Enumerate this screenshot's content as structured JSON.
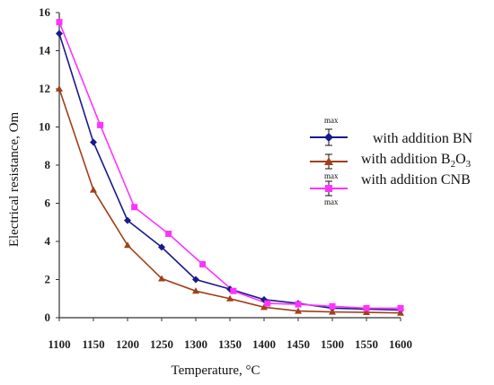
{
  "chart_data": {
    "type": "line",
    "title": "",
    "xlabel": "Temperature, °C",
    "ylabel": "Electrical resistance, Om",
    "x_ticks": [
      1100,
      1150,
      1200,
      1250,
      1300,
      1350,
      1400,
      1450,
      1500,
      1550,
      1600
    ],
    "y_ticks": [
      0,
      2,
      4,
      6,
      8,
      10,
      12,
      14,
      16
    ],
    "xlim": [
      1100,
      1600
    ],
    "ylim": [
      0,
      16
    ],
    "legend_position": "right",
    "error_bar_label": "max",
    "series": [
      {
        "name": "with addition BN",
        "color": "#1a1a8c",
        "marker": "diamond",
        "points": [
          [
            1100,
            14.9
          ],
          [
            1150,
            9.2
          ],
          [
            1200,
            5.1
          ],
          [
            1250,
            3.7
          ],
          [
            1300,
            2.0
          ],
          [
            1350,
            1.5
          ],
          [
            1400,
            0.95
          ],
          [
            1450,
            0.75
          ],
          [
            1500,
            0.5
          ],
          [
            1550,
            0.45
          ],
          [
            1600,
            0.4
          ]
        ]
      },
      {
        "name": "with addition B2O3",
        "name_base": "with addition B",
        "name_sub1": "2",
        "name_mid": "O",
        "name_sub2": "3",
        "color": "#a0401a",
        "marker": "triangle",
        "points": [
          [
            1100,
            12.0
          ],
          [
            1150,
            6.7
          ],
          [
            1200,
            3.8
          ],
          [
            1250,
            2.05
          ],
          [
            1300,
            1.4
          ],
          [
            1350,
            1.0
          ],
          [
            1400,
            0.55
          ],
          [
            1450,
            0.35
          ],
          [
            1500,
            0.3
          ],
          [
            1550,
            0.28
          ],
          [
            1600,
            0.25
          ]
        ]
      },
      {
        "name": "with addition CNB",
        "color": "#ff33ff",
        "marker": "square",
        "points": [
          [
            1100,
            15.5
          ],
          [
            1160,
            10.1
          ],
          [
            1210,
            5.8
          ],
          [
            1260,
            4.4
          ],
          [
            1310,
            2.8
          ],
          [
            1355,
            1.4
          ],
          [
            1405,
            0.75
          ],
          [
            1450,
            0.7
          ],
          [
            1500,
            0.6
          ],
          [
            1550,
            0.5
          ],
          [
            1600,
            0.5
          ]
        ]
      }
    ]
  }
}
